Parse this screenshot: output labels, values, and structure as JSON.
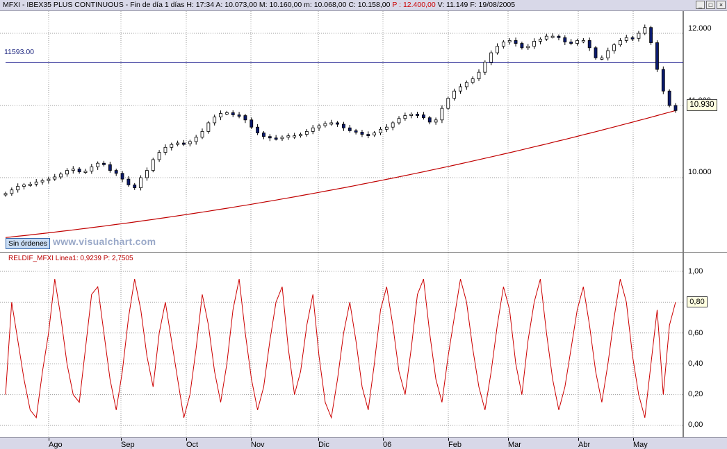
{
  "header": {
    "symbol": "MFXI - IBEX35 PLUS CONTINUOUS",
    "period": "Fin de día 1 días",
    "h": "H: 17:34",
    "a": "A: 10.073,00",
    "m_upper": "M: 10.160,00",
    "m_lower": "m: 10.068,00",
    "c": "C: 10.158,00",
    "p": "P : 12.400,00",
    "v": "V: 11.149",
    "f": "F: 19/08/2005"
  },
  "window_buttons": [
    "_",
    "□",
    "×"
  ],
  "badge": "Sin órdenes",
  "watermark": "www.visualchart.com",
  "hline_label": "11593.00",
  "indicator_title": "RELDIF_MFXI  Linea1: 0,9239  P: 2,7505",
  "price_label": "10.930",
  "osc_label": "0,80",
  "colors": {
    "candle_up": "#ffffff",
    "candle_down": "#0a1a6e",
    "ma": "#c00000",
    "hline": "#000080",
    "osc": "#cc0000",
    "grid": "#9a9a9a"
  },
  "chart_data": [
    {
      "type": "candlestick",
      "title": "MFXI - IBEX35 PLUS CONTINUOUS",
      "y_axis_labels": [
        "12.000",
        "11.000",
        "10.000"
      ],
      "ylim": [
        9200,
        12400
      ],
      "reference_line": 11593,
      "x_tick_labels": [
        "Ago",
        "Sep",
        "Oct",
        "Nov",
        "Dic",
        "06",
        "Feb",
        "Mar",
        "Abr",
        "May"
      ],
      "close_series": [
        9780,
        9830,
        9880,
        9900,
        9910,
        9940,
        9960,
        9980,
        10010,
        10050,
        10100,
        10120,
        10080,
        10090,
        10150,
        10200,
        10180,
        10100,
        10060,
        9980,
        9900,
        9860,
        10000,
        10100,
        10250,
        10350,
        10420,
        10460,
        10480,
        10470,
        10500,
        10560,
        10640,
        10760,
        10840,
        10890,
        10900,
        10870,
        10860,
        10800,
        10700,
        10620,
        10570,
        10550,
        10540,
        10560,
        10580,
        10580,
        10600,
        10640,
        10690,
        10720,
        10750,
        10760,
        10740,
        10690,
        10650,
        10630,
        10600,
        10590,
        10620,
        10670,
        10700,
        10760,
        10820,
        10860,
        10880,
        10870,
        10830,
        10770,
        10800,
        10960,
        11100,
        11200,
        11260,
        11320,
        11370,
        11460,
        11600,
        11730,
        11820,
        11880,
        11900,
        11860,
        11800,
        11820,
        11890,
        11920,
        11960,
        11960,
        11940,
        11880,
        11860,
        11900,
        11900,
        11800,
        11660,
        11660,
        11760,
        11840,
        11900,
        11940,
        11930,
        12000,
        12080,
        11870,
        11500,
        11200,
        11000,
        10930
      ],
      "moving_average": {
        "start": 9170,
        "end": 10930
      }
    },
    {
      "type": "line",
      "title": "RELDIF_MFXI",
      "y_axis_labels": [
        "1,00",
        "0,80",
        "0,60",
        "0,40",
        "0,20",
        "0,00"
      ],
      "ylim": [
        0,
        1
      ],
      "values": [
        0.2,
        0.8,
        0.55,
        0.3,
        0.1,
        0.05,
        0.35,
        0.6,
        0.95,
        0.7,
        0.4,
        0.2,
        0.15,
        0.5,
        0.85,
        0.9,
        0.6,
        0.3,
        0.1,
        0.35,
        0.7,
        0.95,
        0.75,
        0.45,
        0.25,
        0.6,
        0.8,
        0.55,
        0.3,
        0.05,
        0.2,
        0.5,
        0.85,
        0.65,
        0.35,
        0.15,
        0.4,
        0.75,
        0.95,
        0.6,
        0.3,
        0.1,
        0.25,
        0.55,
        0.8,
        0.9,
        0.5,
        0.2,
        0.35,
        0.65,
        0.85,
        0.45,
        0.15,
        0.05,
        0.3,
        0.6,
        0.8,
        0.55,
        0.25,
        0.1,
        0.4,
        0.75,
        0.9,
        0.65,
        0.35,
        0.2,
        0.5,
        0.85,
        0.95,
        0.6,
        0.3,
        0.15,
        0.45,
        0.7,
        0.95,
        0.8,
        0.5,
        0.25,
        0.1,
        0.35,
        0.65,
        0.9,
        0.75,
        0.4,
        0.2,
        0.55,
        0.8,
        0.95,
        0.6,
        0.3,
        0.1,
        0.25,
        0.5,
        0.75,
        0.9,
        0.65,
        0.35,
        0.15,
        0.4,
        0.7,
        0.95,
        0.8,
        0.45,
        0.2,
        0.05,
        0.4,
        0.75,
        0.2,
        0.65,
        0.8
      ]
    }
  ]
}
